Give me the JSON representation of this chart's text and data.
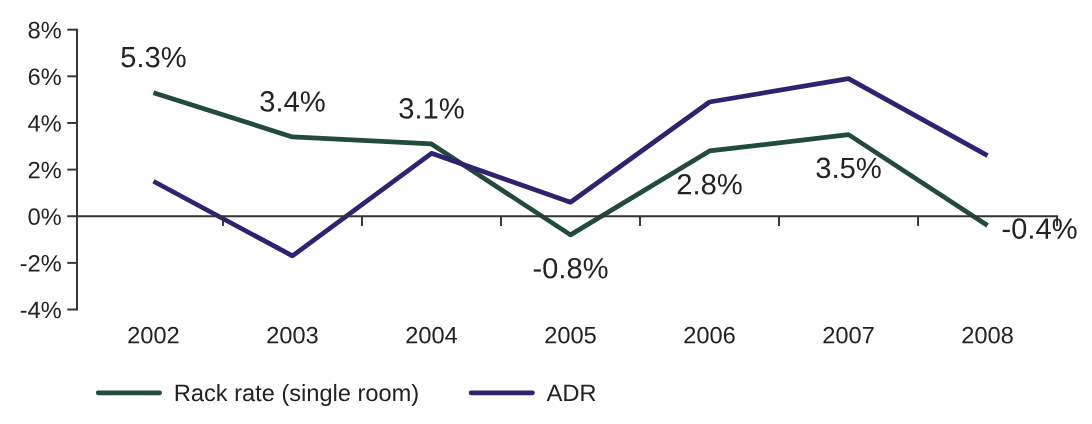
{
  "chart_data": {
    "type": "line",
    "categories": [
      "2002",
      "2003",
      "2004",
      "2005",
      "2006",
      "2007",
      "2008"
    ],
    "series": [
      {
        "name": "Rack rate (single room)",
        "color": "#214b3c",
        "values": [
          5.3,
          3.4,
          3.1,
          -0.8,
          2.8,
          3.5,
          -0.4
        ],
        "value_labels": [
          "5.3%",
          "3.4%",
          "3.1%",
          "-0.8%",
          "2.8%",
          "3.5%",
          "-0.4%"
        ]
      },
      {
        "name": "ADR",
        "color": "#2f2270",
        "values": [
          1.5,
          -1.7,
          2.7,
          0.6,
          4.9,
          5.9,
          2.6
        ]
      }
    ],
    "ylim": [
      -4,
      8
    ],
    "yticks": [
      {
        "value": -4,
        "label": "-4%"
      },
      {
        "value": -2,
        "label": "-2%"
      },
      {
        "value": 0,
        "label": "0%"
      },
      {
        "value": 2,
        "label": "2%"
      },
      {
        "value": 4,
        "label": "4%"
      },
      {
        "value": 6,
        "label": "6%"
      },
      {
        "value": 8,
        "label": "8%"
      }
    ],
    "legend": "bottom"
  }
}
